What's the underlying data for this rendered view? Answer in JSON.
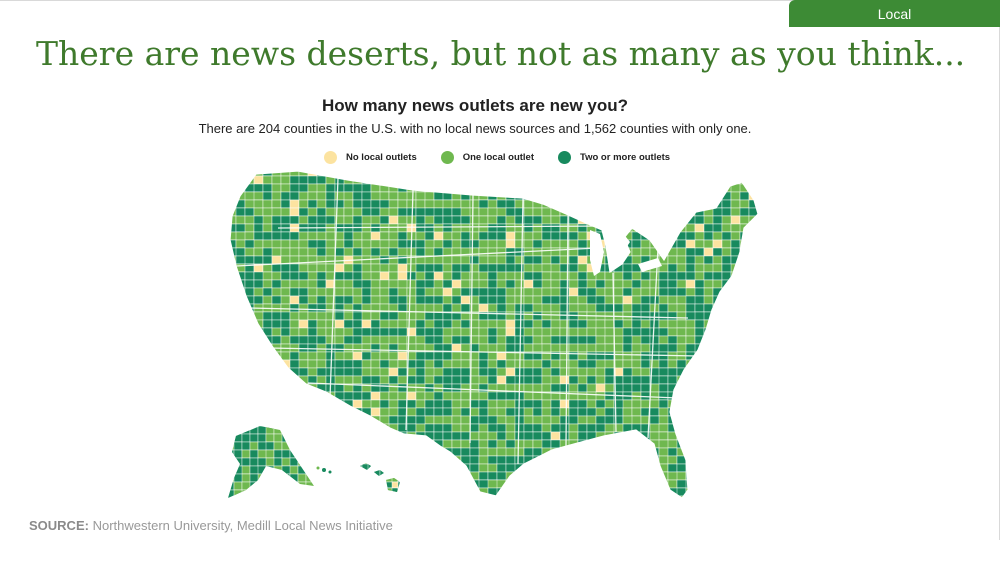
{
  "tab": {
    "label": "Local"
  },
  "headline": "There are news deserts, but not as many as you think...",
  "chart": {
    "title": "How many news outlets are new you?",
    "subtitle": "There are 204 counties in the U.S. with no local news sources and 1,562 counties with only one."
  },
  "legend": [
    {
      "label": "No local outlets",
      "color": "#fce3a0"
    },
    {
      "label": "One local outlet",
      "color": "#6fb84f"
    },
    {
      "label": "Two or more outlets",
      "color": "#188a5e"
    }
  ],
  "colors": {
    "accent": "#3d8b35",
    "headline": "#3f7a2c",
    "none": "#fce3a0",
    "one": "#6fb84f",
    "two_plus": "#188a5e"
  },
  "source": {
    "label": "SOURCE:",
    "text": "Northwestern University, Medill Local News Initiative"
  }
}
